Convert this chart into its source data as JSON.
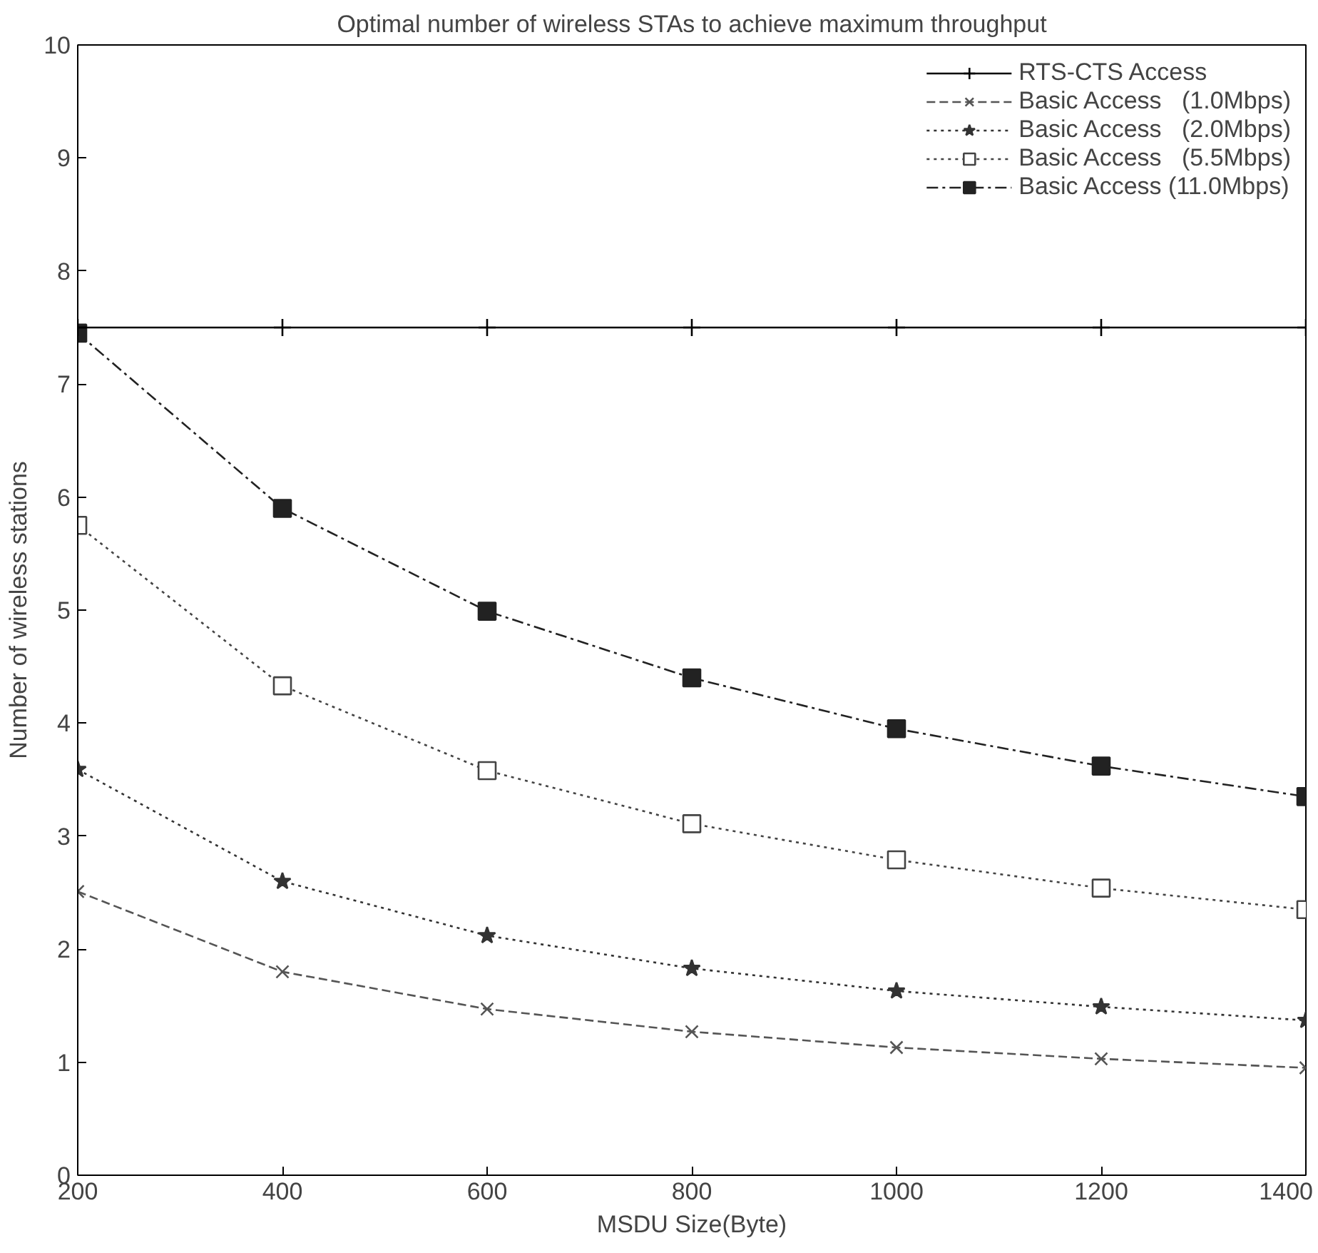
{
  "chart_data": {
    "type": "line",
    "title": "Optimal number of wireless STAs to achieve maximum throughput",
    "xlabel": "MSDU Size(Byte)",
    "ylabel": "Number of wireless stations",
    "x": [
      200,
      400,
      600,
      800,
      1000,
      1200,
      1400
    ],
    "xlim": [
      200,
      1400
    ],
    "xticks": [
      200,
      400,
      600,
      800,
      1000,
      1200,
      1400
    ],
    "ylim": [
      0,
      10
    ],
    "yticks": [
      0,
      1,
      2,
      3,
      4,
      5,
      6,
      7,
      8,
      9,
      10
    ],
    "grid": false,
    "legend": "top right",
    "series": [
      {
        "name": "RTS-CTS Access",
        "color": "#000000",
        "marker": "cross",
        "line_style": "solid",
        "values": [
          7.5,
          7.5,
          7.5,
          7.5,
          7.5,
          7.5,
          7.5
        ]
      },
      {
        "name": "Basic Access   (1.0Mbps)",
        "color": "#555555",
        "marker": "x",
        "line_style": "dashed",
        "values": [
          2.51,
          1.8,
          1.47,
          1.27,
          1.13,
          1.03,
          0.95
        ]
      },
      {
        "name": "Basic Access   (2.0Mbps)",
        "color": "#333333",
        "marker": "star",
        "line_style": "dotted",
        "values": [
          3.59,
          2.6,
          2.12,
          1.83,
          1.63,
          1.49,
          1.37
        ]
      },
      {
        "name": "Basic Access   (5.5Mbps)",
        "color": "#444444",
        "marker": "square",
        "line_style": "dotted",
        "values": [
          5.75,
          4.33,
          3.58,
          3.11,
          2.79,
          2.54,
          2.35
        ]
      },
      {
        "name": "Basic Access (11.0Mbps)",
        "color": "#222222",
        "marker": "square_filled",
        "line_style": "dashdot",
        "values": [
          7.45,
          5.9,
          4.99,
          4.4,
          3.95,
          3.62,
          3.35
        ]
      }
    ]
  }
}
